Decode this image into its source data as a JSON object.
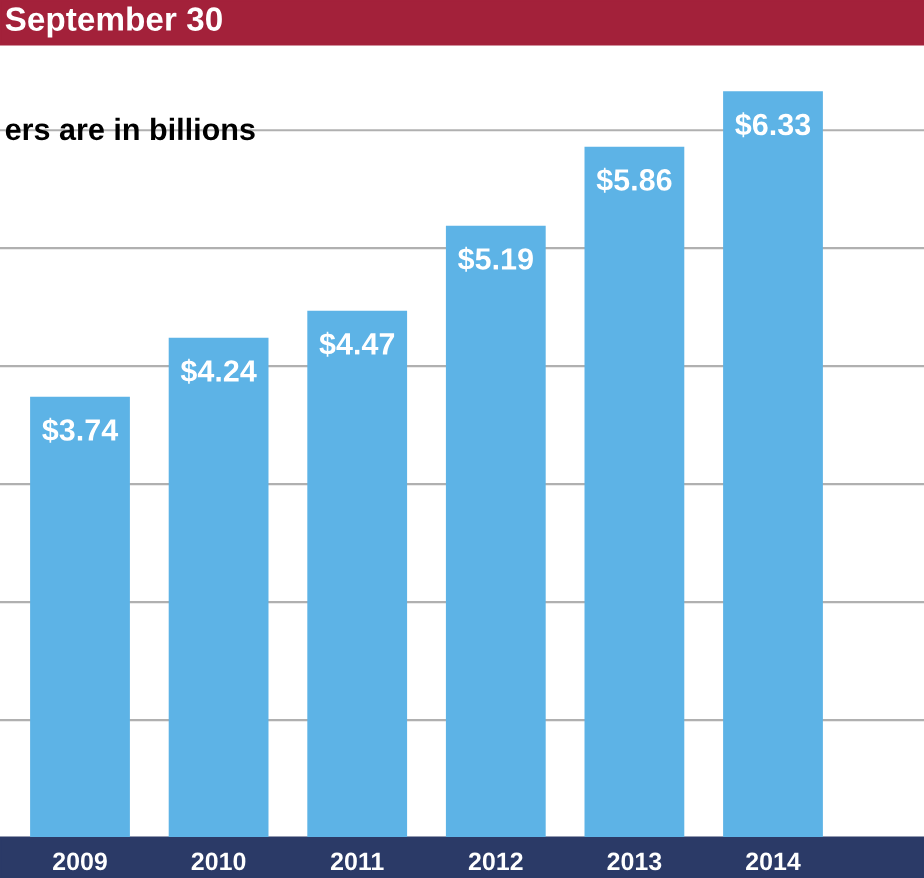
{
  "chart_data": {
    "type": "bar",
    "title": "September 30",
    "subtitle": "ers are in billions",
    "categories": [
      "2009",
      "2010",
      "2011",
      "2012",
      "2013",
      "2014"
    ],
    "values": [
      3.74,
      4.24,
      4.47,
      5.19,
      5.86,
      6.33
    ],
    "value_labels": [
      "$3.74",
      "$4.24",
      "$4.47",
      "$5.19",
      "$5.86",
      "$6.33"
    ],
    "color": "#5db3e6",
    "yticks": [
      {
        "value": 1,
        "label": null
      },
      {
        "value": 2,
        "label": null
      },
      {
        "value": 3,
        "label": null
      },
      {
        "value": 4,
        "label": null
      },
      {
        "value": 5,
        "label": null
      },
      {
        "value": 6,
        "label": null
      }
    ],
    "grid": "y",
    "tick_labels": "x"
  }
}
